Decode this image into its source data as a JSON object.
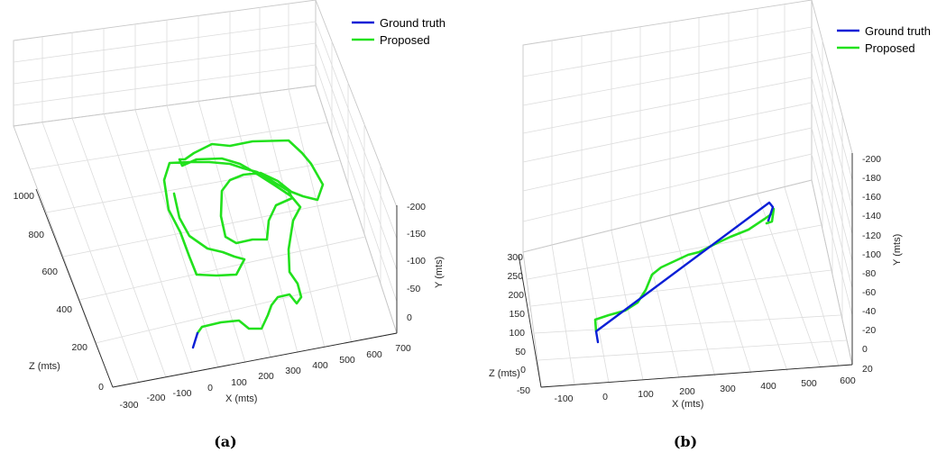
{
  "colors": {
    "ground_truth": "#0a1fd6",
    "proposed": "#22e11d",
    "grid": "#dcdcdc"
  },
  "chart_data": [
    {
      "type": "line3d",
      "caption": "(a)",
      "xlabel": "X (mts)",
      "ylabel": "Y (mts)",
      "zlabel": "Z (mts)",
      "x_ticks": [
        "-300",
        "-200",
        "-100",
        "0",
        "100",
        "200",
        "300",
        "400",
        "500",
        "600",
        "700"
      ],
      "y_ticks": [
        "-200",
        "-150",
        "-100",
        "-50",
        "0"
      ],
      "z_ticks": [
        "0",
        "200",
        "400",
        "600",
        "800",
        "1000"
      ],
      "legend": [
        "Ground truth",
        "Proposed"
      ],
      "legend_position": "top-right",
      "series": [
        {
          "name": "Ground truth",
          "points": [
            [
              214,
              386
            ],
            [
              219,
              370
            ]
          ]
        },
        {
          "name": "Proposed",
          "points": [
            [
              219,
              370
            ],
            [
              224,
              363
            ],
            [
              245,
              358
            ],
            [
              265,
              356
            ],
            [
              276,
              365
            ],
            [
              290,
              365
            ],
            [
              297,
              350
            ],
            [
              301,
              339
            ],
            [
              308,
              330
            ],
            [
              321,
              327
            ],
            [
              329,
              337
            ],
            [
              334,
              330
            ],
            [
              330,
              315
            ],
            [
              321,
              302
            ],
            [
              320,
              277
            ],
            [
              325,
              245
            ],
            [
              333,
              230
            ],
            [
              323,
              218
            ],
            [
              305,
              206
            ],
            [
              280,
              190
            ],
            [
              266,
              182
            ],
            [
              246,
              176
            ],
            [
              218,
              177
            ],
            [
              202,
              184
            ],
            [
              199,
              177
            ],
            [
              205,
              177
            ],
            [
              215,
              170
            ],
            [
              235,
              160
            ],
            [
              255,
              162
            ],
            [
              280,
              157
            ],
            [
              320,
              156
            ],
            [
              335,
              170
            ],
            [
              345,
              182
            ],
            [
              358,
              205
            ],
            [
              352,
              222
            ],
            [
              336,
              218
            ],
            [
              323,
              213
            ],
            [
              308,
              201
            ],
            [
              289,
              192
            ],
            [
              270,
              194
            ],
            [
              255,
              200
            ],
            [
              246,
              212
            ],
            [
              245,
              240
            ],
            [
              250,
              263
            ],
            [
              262,
              270
            ],
            [
              280,
              266
            ],
            [
              296,
              266
            ],
            [
              298,
              245
            ],
            [
              306,
              228
            ],
            [
              324,
              220
            ],
            [
              320,
              212
            ],
            [
              300,
              200
            ],
            [
              285,
              191
            ],
            [
              270,
              187
            ],
            [
              255,
              182
            ],
            [
              232,
              180
            ],
            [
              210,
              180
            ],
            [
              188,
              181
            ],
            [
              182,
              200
            ],
            [
              187,
              233
            ],
            [
              200,
              258
            ],
            [
              210,
              285
            ],
            [
              218,
              305
            ],
            [
              240,
              306
            ],
            [
              262,
              305
            ],
            [
              271,
              288
            ],
            [
              260,
              285
            ],
            [
              247,
              280
            ],
            [
              230,
              276
            ],
            [
              210,
              262
            ],
            [
              199,
              242
            ],
            [
              193,
              215
            ]
          ]
        }
      ]
    },
    {
      "type": "line3d",
      "caption": "(b)",
      "xlabel": "X (mts)",
      "ylabel": "Y (mts)",
      "zlabel": "Z (mts)",
      "x_ticks": [
        "-100",
        "0",
        "100",
        "200",
        "300",
        "400",
        "500",
        "600"
      ],
      "y_ticks": [
        "-200",
        "-180",
        "-160",
        "-140",
        "-120",
        "-100",
        "-80",
        "-60",
        "-40",
        "-20",
        "0",
        "20"
      ],
      "z_ticks": [
        "-50",
        "0",
        "50",
        "100",
        "150",
        "200",
        "250",
        "300"
      ],
      "legend": [
        "Ground truth",
        "Proposed"
      ],
      "legend_position": "top-right",
      "series": [
        {
          "name": "Ground truth",
          "points": [
            [
              663,
              380
            ],
            [
              661,
              368
            ],
            [
              853,
              225
            ],
            [
              857,
              230
            ],
            [
              852,
              245
            ]
          ]
        },
        {
          "name": "Proposed",
          "points": [
            [
              661,
              368
            ],
            [
              660,
              355
            ],
            [
              675,
              350
            ],
            [
              693,
              345
            ],
            [
              707,
              336
            ],
            [
              716,
              322
            ],
            [
              723,
              305
            ],
            [
              733,
              297
            ],
            [
              748,
              290
            ],
            [
              763,
              283
            ],
            [
              775,
              280
            ],
            [
              795,
              270
            ],
            [
              810,
              263
            ],
            [
              830,
              255
            ],
            [
              848,
              243
            ],
            [
              855,
              238
            ],
            [
              858,
              232
            ],
            [
              856,
              246
            ],
            [
              850,
              248
            ]
          ]
        }
      ]
    }
  ]
}
